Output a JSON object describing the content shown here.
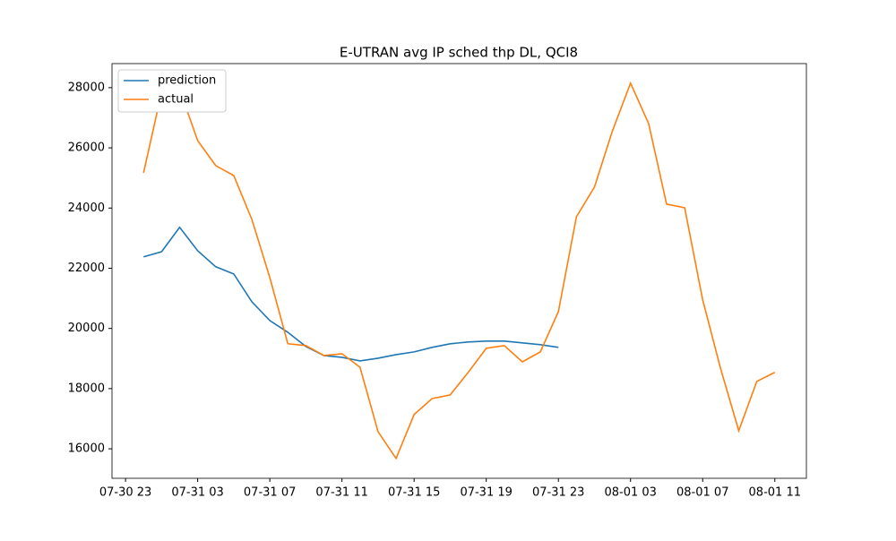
{
  "chart_data": {
    "type": "line",
    "title": "E-UTRAN avg IP sched thp DL, QCI8",
    "x": [
      "07-31 00",
      "07-31 01",
      "07-31 02",
      "07-31 03",
      "07-31 04",
      "07-31 05",
      "07-31 06",
      "07-31 07",
      "07-31 08",
      "07-31 09",
      "07-31 10",
      "07-31 11",
      "07-31 12",
      "07-31 13",
      "07-31 14",
      "07-31 15",
      "07-31 16",
      "07-31 17",
      "07-31 18",
      "07-31 19",
      "07-31 20",
      "07-31 21",
      "07-31 22",
      "07-31 23",
      "08-01 00",
      "08-01 01",
      "08-01 02",
      "08-01 03",
      "08-01 04",
      "08-01 05",
      "08-01 06",
      "08-01 07",
      "08-01 08",
      "08-01 09",
      "08-01 10",
      "08-01 11"
    ],
    "series": [
      {
        "name": "prediction",
        "color": "#1f77b4",
        "values": [
          22380,
          22550,
          23360,
          22580,
          22050,
          21810,
          20890,
          20260,
          19870,
          19400,
          19100,
          19040,
          18920,
          19010,
          19130,
          19220,
          19370,
          19490,
          19550,
          19580,
          19580,
          19520,
          19460,
          19370,
          null,
          null,
          null,
          null,
          null,
          null,
          null,
          null,
          null,
          null,
          null,
          null
        ]
      },
      {
        "name": "actual",
        "color": "#ff7f0e",
        "values": [
          25170,
          27850,
          27940,
          26240,
          25410,
          25080,
          23630,
          21690,
          19490,
          19430,
          19100,
          19160,
          18710,
          16570,
          15680,
          17140,
          17670,
          17790,
          18540,
          19340,
          19430,
          18890,
          19220,
          20560,
          23710,
          24700,
          26570,
          28150,
          26810,
          24130,
          24010,
          20950,
          18650,
          16600,
          18240,
          18540
        ]
      }
    ],
    "xlim": [
      "07-30 22:15",
      "08-01 12:45"
    ],
    "xticks": [
      "07-30 23",
      "07-31 03",
      "07-31 07",
      "07-31 11",
      "07-31 15",
      "07-31 19",
      "07-31 23",
      "08-01 03",
      "08-01 07",
      "08-01 11"
    ],
    "ylim": [
      15020,
      28800
    ],
    "yticks": [
      16000,
      18000,
      20000,
      22000,
      24000,
      26000,
      28000
    ],
    "legend": "upper left"
  }
}
